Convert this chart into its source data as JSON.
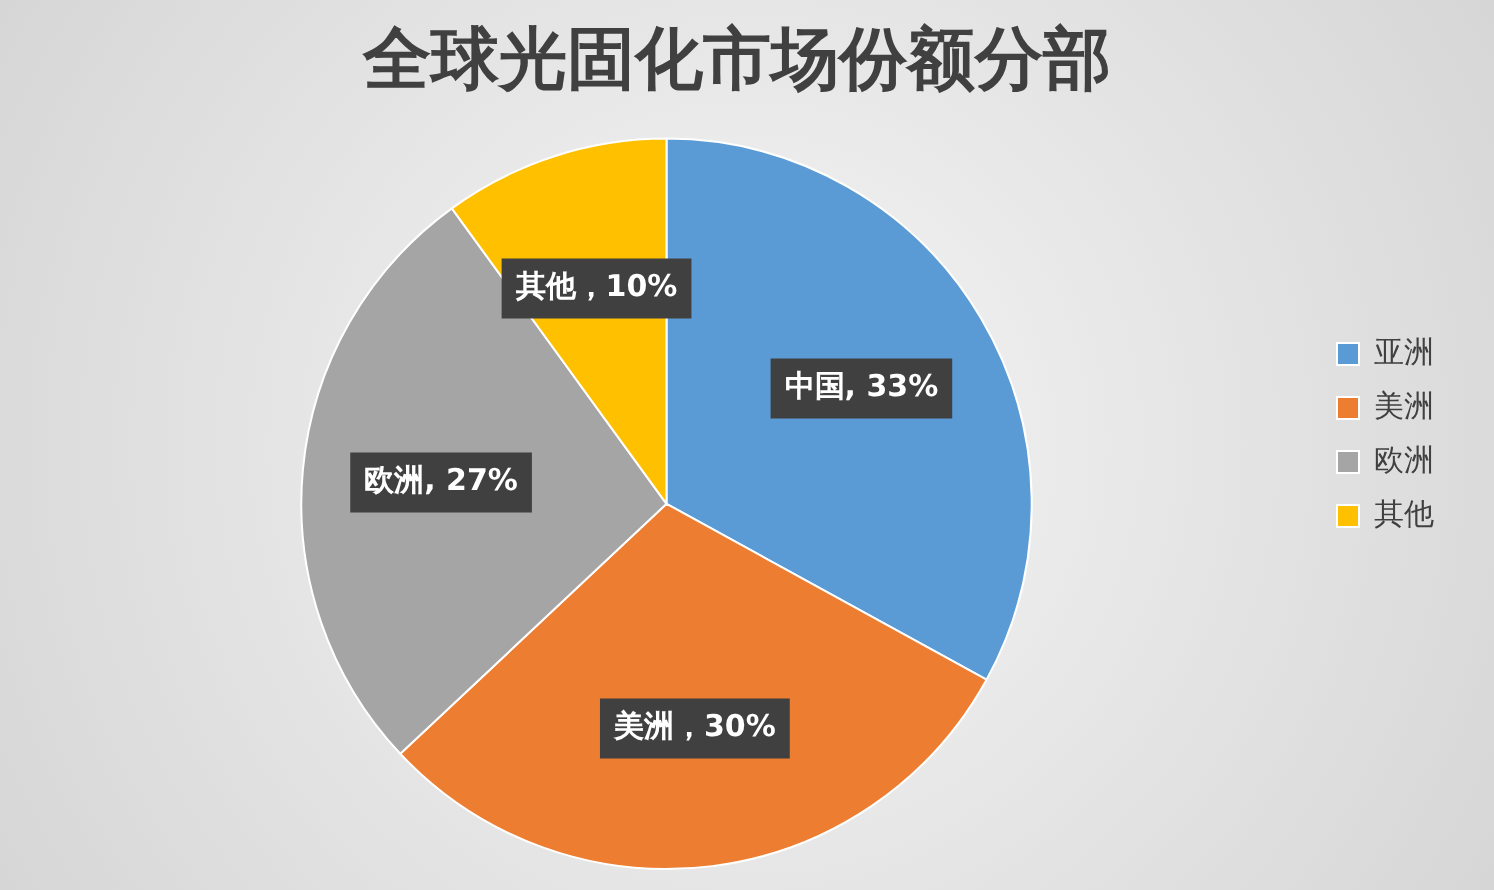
{
  "chart_data": {
    "type": "pie",
    "title": "全球光固化市场份额分部",
    "categories": [
      "亚洲",
      "美洲",
      "欧洲",
      "其他"
    ],
    "values": [
      33,
      30,
      27,
      10
    ],
    "colors": [
      "#5b9bd5",
      "#ed7d31",
      "#a5a5a5",
      "#ffc000"
    ],
    "value_labels": [
      "中国, 33%",
      "美洲，30%",
      "欧洲, 27%",
      "其他，10%"
    ],
    "legend": "right"
  }
}
